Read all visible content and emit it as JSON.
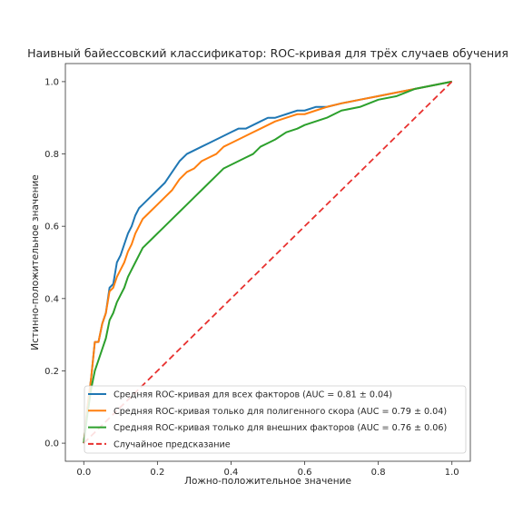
{
  "chart_data": {
    "type": "line",
    "title": "Наивный байессовский классификатор: ROC-кривая для трёх случаев обучения",
    "xlabel": "Ложно-положительное значение",
    "ylabel": "Истинно-положительное значение",
    "xlim": [
      -0.05,
      1.05
    ],
    "ylim": [
      -0.05,
      1.05
    ],
    "xticks": [
      0.0,
      0.2,
      0.4,
      0.6,
      0.8,
      1.0
    ],
    "yticks": [
      0.0,
      0.2,
      0.4,
      0.6,
      0.8,
      1.0
    ],
    "xtick_labels": [
      "0.0",
      "0.2",
      "0.4",
      "0.6",
      "0.8",
      "1.0"
    ],
    "ytick_labels": [
      "0.0",
      "0.2",
      "0.4",
      "0.6",
      "0.8",
      "1.0"
    ],
    "grid": false,
    "legend_position": "bottom-right",
    "series": [
      {
        "name": "Средняя ROC-кривая для всех факторов (AUC = 0.81 ± 0.04)",
        "color": "#1f77b4",
        "style": "solid",
        "x": [
          0,
          0.01,
          0.02,
          0.03,
          0.04,
          0.05,
          0.06,
          0.07,
          0.08,
          0.09,
          0.1,
          0.11,
          0.12,
          0.13,
          0.14,
          0.15,
          0.16,
          0.17,
          0.18,
          0.2,
          0.22,
          0.24,
          0.26,
          0.28,
          0.3,
          0.32,
          0.34,
          0.36,
          0.38,
          0.4,
          0.42,
          0.44,
          0.46,
          0.48,
          0.5,
          0.52,
          0.55,
          0.58,
          0.6,
          0.63,
          0.66,
          0.7,
          0.75,
          0.8,
          0.85,
          0.9,
          0.95,
          1.0
        ],
        "y": [
          0,
          0.1,
          0.18,
          0.28,
          0.28,
          0.33,
          0.36,
          0.43,
          0.44,
          0.5,
          0.52,
          0.55,
          0.58,
          0.6,
          0.63,
          0.65,
          0.66,
          0.67,
          0.68,
          0.7,
          0.72,
          0.75,
          0.78,
          0.8,
          0.81,
          0.82,
          0.83,
          0.84,
          0.85,
          0.86,
          0.87,
          0.87,
          0.88,
          0.89,
          0.9,
          0.9,
          0.91,
          0.92,
          0.92,
          0.93,
          0.93,
          0.94,
          0.95,
          0.96,
          0.97,
          0.98,
          0.99,
          1.0
        ]
      },
      {
        "name": "Средняя ROC-кривая только для полигенного скора (AUC = 0.79 ± 0.04)",
        "color": "#ff7f0e",
        "style": "solid",
        "x": [
          0,
          0.01,
          0.02,
          0.03,
          0.04,
          0.05,
          0.06,
          0.07,
          0.08,
          0.09,
          0.1,
          0.11,
          0.12,
          0.13,
          0.14,
          0.15,
          0.16,
          0.17,
          0.18,
          0.2,
          0.22,
          0.24,
          0.26,
          0.28,
          0.3,
          0.32,
          0.34,
          0.36,
          0.38,
          0.4,
          0.42,
          0.44,
          0.46,
          0.48,
          0.5,
          0.52,
          0.55,
          0.58,
          0.6,
          0.63,
          0.66,
          0.7,
          0.75,
          0.8,
          0.85,
          0.9,
          0.95,
          1.0
        ],
        "y": [
          0,
          0.1,
          0.18,
          0.28,
          0.28,
          0.33,
          0.36,
          0.42,
          0.43,
          0.46,
          0.48,
          0.5,
          0.53,
          0.55,
          0.58,
          0.6,
          0.62,
          0.63,
          0.64,
          0.66,
          0.68,
          0.7,
          0.73,
          0.75,
          0.76,
          0.78,
          0.79,
          0.8,
          0.82,
          0.83,
          0.84,
          0.85,
          0.86,
          0.87,
          0.88,
          0.89,
          0.9,
          0.91,
          0.91,
          0.92,
          0.93,
          0.94,
          0.95,
          0.96,
          0.97,
          0.98,
          0.99,
          1.0
        ]
      },
      {
        "name": "Средняя ROC-кривая только для внешних факторов (AUC = 0.76 ± 0.06)",
        "color": "#2ca02c",
        "style": "solid",
        "x": [
          0,
          0.01,
          0.02,
          0.03,
          0.04,
          0.05,
          0.06,
          0.07,
          0.08,
          0.09,
          0.1,
          0.11,
          0.12,
          0.13,
          0.14,
          0.15,
          0.16,
          0.17,
          0.18,
          0.2,
          0.22,
          0.24,
          0.26,
          0.28,
          0.3,
          0.32,
          0.34,
          0.36,
          0.38,
          0.4,
          0.42,
          0.44,
          0.46,
          0.48,
          0.5,
          0.52,
          0.55,
          0.58,
          0.6,
          0.63,
          0.66,
          0.7,
          0.75,
          0.8,
          0.85,
          0.9,
          0.95,
          1.0
        ],
        "y": [
          0,
          0.08,
          0.15,
          0.2,
          0.23,
          0.26,
          0.29,
          0.34,
          0.36,
          0.39,
          0.41,
          0.43,
          0.46,
          0.48,
          0.5,
          0.52,
          0.54,
          0.55,
          0.56,
          0.58,
          0.6,
          0.62,
          0.64,
          0.66,
          0.68,
          0.7,
          0.72,
          0.74,
          0.76,
          0.77,
          0.78,
          0.79,
          0.8,
          0.82,
          0.83,
          0.84,
          0.86,
          0.87,
          0.88,
          0.89,
          0.9,
          0.92,
          0.93,
          0.95,
          0.96,
          0.98,
          0.99,
          1.0
        ]
      },
      {
        "name": "Случайное предсказание",
        "color": "#e8312f",
        "style": "dashed",
        "x": [
          0,
          1
        ],
        "y": [
          0,
          1
        ]
      }
    ]
  }
}
